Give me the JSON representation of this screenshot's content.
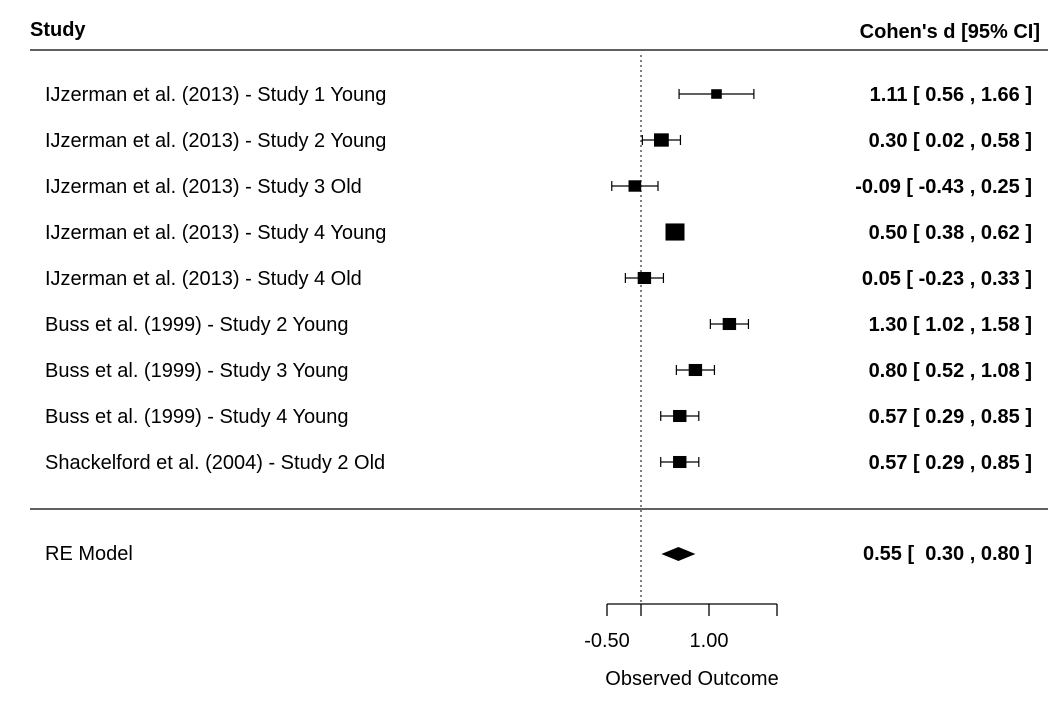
{
  "chart_data": {
    "type": "forest",
    "columns": {
      "study": "Study",
      "effect": "Cohen's d [95% CI]"
    },
    "studies": [
      {
        "label": "IJzerman et al. (2013) - Study 1 Young",
        "est": 1.11,
        "lo": 0.56,
        "hi": 1.66,
        "ci_text": "1.11 [  0.56 , 1.66 ]",
        "weight": 0.4
      },
      {
        "label": "IJzerman et al. (2013) - Study 2 Young",
        "est": 0.3,
        "lo": 0.02,
        "hi": 0.58,
        "ci_text": "0.30 [  0.02 , 0.58 ]",
        "weight": 0.7
      },
      {
        "label": "IJzerman et al. (2013) - Study 3 Old",
        "est": -0.09,
        "lo": -0.43,
        "hi": 0.25,
        "ci_text": "-0.09 [ -0.43 , 0.25 ]",
        "weight": 0.55
      },
      {
        "label": "IJzerman et al. (2013) - Study 4 Young",
        "est": 0.5,
        "lo": 0.38,
        "hi": 0.62,
        "ci_text": "0.50 [  0.38 , 0.62 ]",
        "weight": 1.0
      },
      {
        "label": "IJzerman et al. (2013) - Study 4 Old",
        "est": 0.05,
        "lo": -0.23,
        "hi": 0.33,
        "ci_text": "0.05 [ -0.23 , 0.33 ]",
        "weight": 0.6
      },
      {
        "label": "Buss et al. (1999) - Study 2 Young",
        "est": 1.3,
        "lo": 1.02,
        "hi": 1.58,
        "ci_text": "1.30 [  1.02 , 1.58 ]",
        "weight": 0.6
      },
      {
        "label": "Buss et al. (1999) - Study 3 Young",
        "est": 0.8,
        "lo": 0.52,
        "hi": 1.08,
        "ci_text": "0.80 [  0.52 , 1.08 ]",
        "weight": 0.6
      },
      {
        "label": "Buss et al. (1999) - Study 4 Young",
        "est": 0.57,
        "lo": 0.29,
        "hi": 0.85,
        "ci_text": "0.57 [  0.29 , 0.85 ]",
        "weight": 0.6
      },
      {
        "label": "Shackelford et al. (2004) - Study 2 Old",
        "est": 0.57,
        "lo": 0.29,
        "hi": 0.85,
        "ci_text": "0.57 [  0.29 , 0.85 ]",
        "weight": 0.6
      }
    ],
    "summary": {
      "label": "RE Model",
      "est": 0.55,
      "lo": 0.3,
      "hi": 0.8,
      "ci_text": "0.55 [  0.30 , 0.80 ]"
    },
    "reference_line": 0,
    "xaxis": {
      "title": "Observed Outcome",
      "ticks": [
        -0.5,
        0,
        1.0,
        2.0
      ],
      "tick_labels": [
        "-0.50",
        "",
        "1.00",
        ""
      ]
    }
  }
}
